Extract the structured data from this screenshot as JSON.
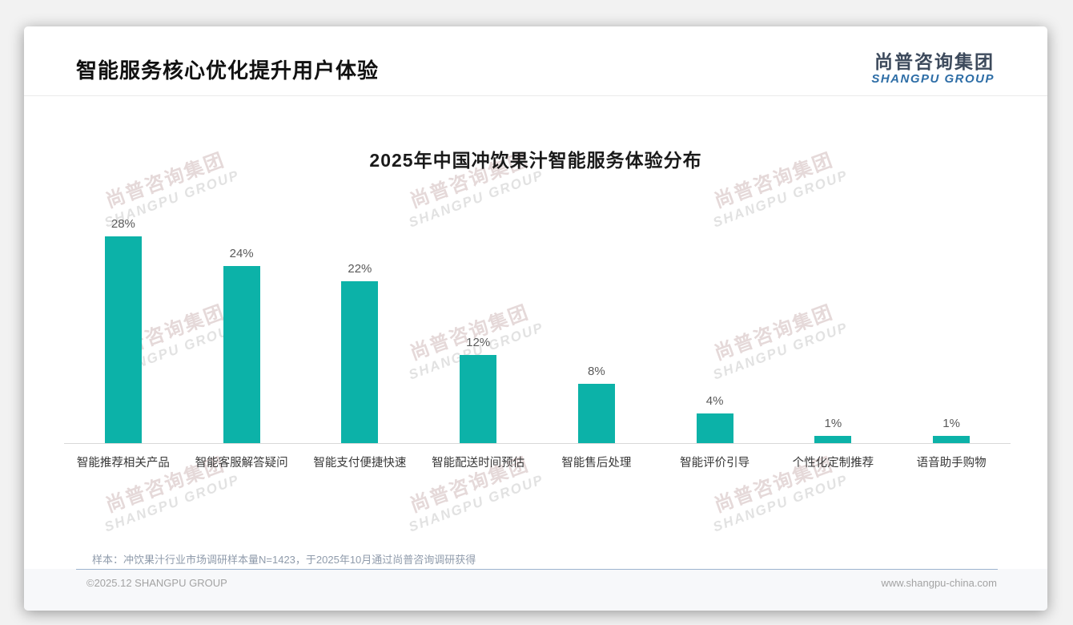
{
  "page": {
    "title": "智能服务核心优化提升用户体验",
    "logo": {
      "cn": "尚普咨询集团",
      "en": "SHANGPU GROUP"
    },
    "watermark": {
      "cn": "尚普咨询集团",
      "en": "SHANGPU GROUP"
    },
    "sample_note": "样本：冲饮果汁行业市场调研样本量N=1423，于2025年10月通过尚普咨询调研获得",
    "footer_left": "©2025.12 SHANGPU GROUP",
    "footer_right": "www.shangpu-china.com"
  },
  "colors": {
    "bar": "#0cb2a8",
    "logo_cn": "#3d4a5c",
    "logo_en": "#2d6da6",
    "value_label": "#595959",
    "note": "#8f9bab"
  },
  "chart_data": {
    "type": "bar",
    "title": "2025年中国冲饮果汁智能服务体验分布",
    "categories": [
      "智能推荐相关产品",
      "智能客服解答疑问",
      "智能支付便捷快速",
      "智能配送时间预估",
      "智能售后处理",
      "智能评价引导",
      "个性化定制推荐",
      "语音助手购物"
    ],
    "values": [
      28,
      24,
      22,
      12,
      8,
      4,
      1,
      1
    ],
    "data_labels": [
      "28%",
      "24%",
      "22%",
      "12%",
      "8%",
      "4%",
      "1%",
      "1%"
    ],
    "unit": "%",
    "xlabel": "",
    "ylabel": "",
    "ylim": [
      0,
      30
    ],
    "grid": false,
    "legend": false,
    "bar_color": "#0cb2a8"
  }
}
